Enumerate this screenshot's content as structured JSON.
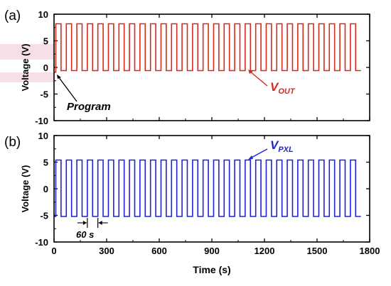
{
  "chart_data": [
    {
      "panel_label": "(a)",
      "type": "line",
      "xlabel": "Time (s)",
      "ylabel": "Voltage (V)",
      "xlim": [
        0,
        1800
      ],
      "ylim": [
        -10,
        10
      ],
      "yticks": [
        "10",
        "5",
        "0",
        "-5",
        "-10"
      ],
      "series": [
        {
          "name": "V_OUT",
          "color": "#d62a1e",
          "waveform": "square",
          "high": 8.2,
          "low": -0.6,
          "period_s": 60,
          "start_s": 10,
          "end_s": 1780
        }
      ],
      "annotations": [
        {
          "text": "Program",
          "italic": true,
          "bold": true,
          "color": "#000000",
          "points_to": [
            3,
            -1
          ]
        },
        {
          "text_main": "V",
          "text_sub": "OUT",
          "color": "#d62a1e",
          "points_to": [
            1085,
            -0.6
          ]
        }
      ]
    },
    {
      "panel_label": "(b)",
      "type": "line",
      "xlabel": "Time (s)",
      "ylabel": "Voltage (V)",
      "xlim": [
        0,
        1800
      ],
      "ylim": [
        -10,
        10
      ],
      "xticks": [
        "0",
        "300",
        "600",
        "900",
        "1200",
        "1500",
        "1800"
      ],
      "yticks": [
        "10",
        "5",
        "0",
        "-5",
        "-10"
      ],
      "series": [
        {
          "name": "V_PXL",
          "color": "#1f23d8",
          "waveform": "square",
          "high": 5.4,
          "low": -5.2,
          "period_s": 60,
          "start_s": 10,
          "end_s": 1780
        }
      ],
      "annotations": [
        {
          "text_main": "V",
          "text_sub": "PXL",
          "color": "#1f23d8",
          "points_to": [
            1085,
            5.4
          ]
        },
        {
          "text": "60 s",
          "italic": true,
          "bold": true,
          "color": "#000000",
          "span": [
            190,
            250
          ]
        }
      ]
    }
  ]
}
